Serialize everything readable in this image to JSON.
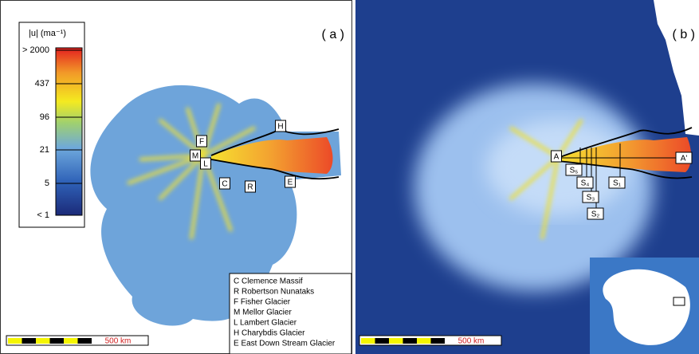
{
  "panel_a": {
    "label": "( a )",
    "colorbar": {
      "title": "|u| (ma⁻¹)",
      "ticks": [
        "> 2000",
        "437",
        "96",
        "21",
        "5",
        "< 1"
      ]
    },
    "map_labels": [
      "F",
      "M",
      "L",
      "C",
      "R",
      "H",
      "E"
    ],
    "legend": [
      "C Clemence Massif",
      "R Robertson Nunataks",
      "F Fisher Glacier",
      "M Mellor Glacier",
      "L Lambert Glacier",
      "H Charybdis Glacier",
      "E East Down Stream Glacier"
    ],
    "scale_bar": "500 km"
  },
  "panel_b": {
    "label": "( b )",
    "map_labels": [
      "A",
      "A'",
      "S₅",
      "S₄",
      "S₃",
      "S₂",
      "S₁"
    ],
    "scale_bar": "500 km"
  }
}
